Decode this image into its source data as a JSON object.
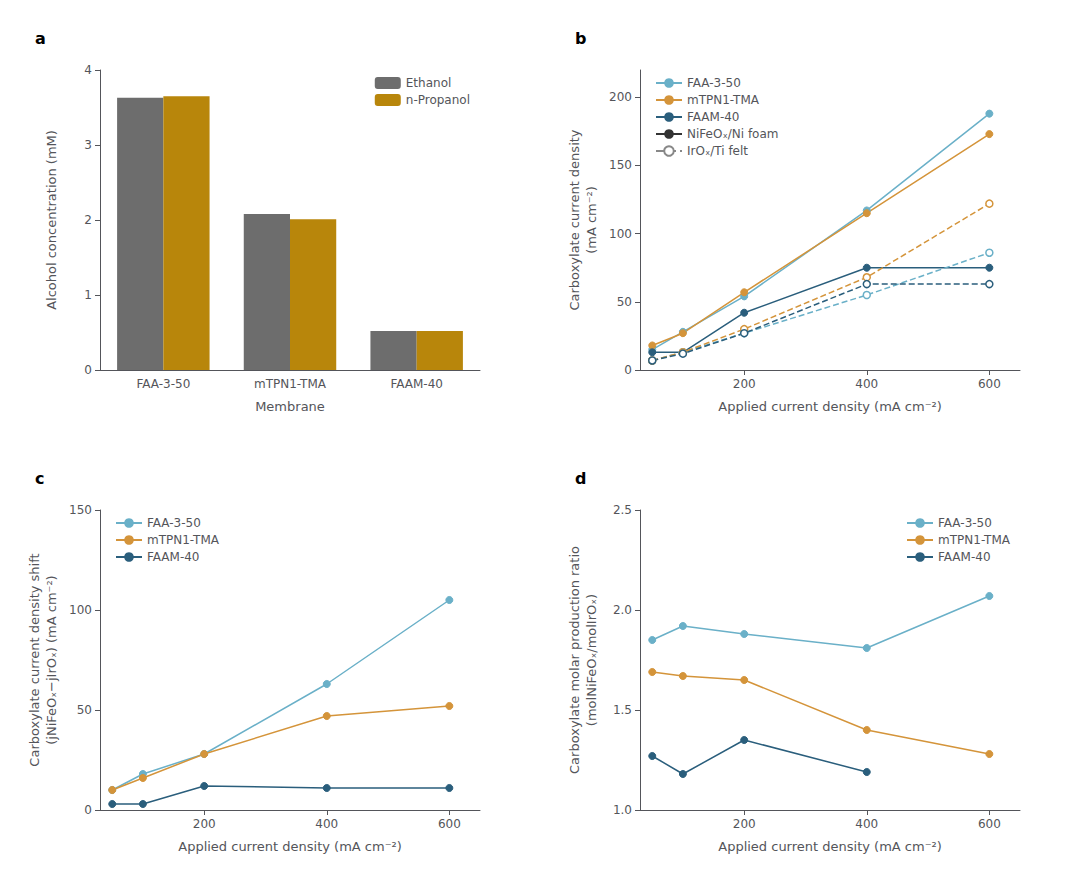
{
  "chart_data": [
    {
      "type": "bar",
      "title": "a",
      "categories": [
        "FAA-3-50",
        "mTPN1-TMA",
        "FAAM-40"
      ],
      "series": [
        {
          "name": "Ethanol",
          "color": "#6d6d6d",
          "values": [
            3.63,
            2.08,
            0.52
          ]
        },
        {
          "name": "n-Propanol",
          "color": "#b8860b",
          "values": [
            3.65,
            2.01,
            0.52
          ]
        }
      ],
      "xlabel": "Membrane",
      "ylabel": "Alcohol concentration (mM)",
      "ylim": [
        0,
        4
      ],
      "yticks": [
        0,
        1,
        2,
        3,
        4
      ],
      "legend": "upper right",
      "grid": false
    },
    {
      "type": "line",
      "title": "b",
      "x": [
        50,
        100,
        200,
        400,
        600
      ],
      "series": [
        {
          "name": "FAA-3-50",
          "color": "#6ab0c8",
          "values": [
            15,
            28,
            54,
            117,
            188
          ],
          "line_style": "solid",
          "marker": "circle"
        },
        {
          "name": "mTPN1-TMA",
          "color": "#d4943a",
          "values": [
            18,
            27,
            57,
            115,
            173
          ],
          "line_style": "solid",
          "marker": "circle"
        },
        {
          "name": "FAAM-40",
          "color": "#2a5e7c",
          "values": [
            13,
            13,
            42,
            75,
            75
          ],
          "line_style": "solid",
          "marker": "circle"
        },
        {
          "name": "FAA-3-50",
          "color": "#6ab0c8",
          "values": [
            7,
            13,
            27,
            55,
            86
          ],
          "line_style": "dashed",
          "marker": "open_circle"
        },
        {
          "name": "mTPN1-TMA",
          "color": "#d4943a",
          "values": [
            7,
            13,
            30,
            68,
            122
          ],
          "line_style": "dashed",
          "marker": "open_circle"
        },
        {
          "name": "FAAM-40",
          "color": "#2a5e7c",
          "values": [
            7,
            12,
            27,
            63,
            63
          ],
          "line_style": "dashed",
          "marker": "open_circle"
        },
        {
          "name": "NiFeOₓ/Ni foam",
          "color": "#333333",
          "values": [
            null,
            null,
            null,
            null,
            null
          ],
          "line_style": "solid",
          "marker": "circle"
        },
        {
          "name": "IrOₓ/Ti felt",
          "color": "#888888",
          "values": [
            null,
            null,
            null,
            null,
            null
          ],
          "line_style": "dashed",
          "marker": "open_circle"
        }
      ],
      "xlabel": "Applied current density (mA cm⁻²)",
      "ylabel": "Carboxylate current density\n(mA cm⁻²)",
      "xlim": [
        30,
        650
      ],
      "xticks": [
        200,
        400,
        600
      ],
      "ylim": [
        0,
        220
      ],
      "yticks": [
        0,
        50,
        100,
        150,
        200
      ],
      "legend": "upper left",
      "grid": false
    },
    {
      "type": "line",
      "title": "c",
      "x": [
        50,
        100,
        200,
        400,
        600
      ],
      "series": [
        {
          "name": "FAA-3-50",
          "color": "#6ab0c8",
          "values": [
            10,
            18,
            28,
            63,
            105
          ],
          "line_style": "solid",
          "marker": "circle"
        },
        {
          "name": "mTPN1-TMA",
          "color": "#d4943a",
          "values": [
            10,
            16,
            28,
            47,
            52
          ],
          "line_style": "solid",
          "marker": "circle"
        },
        {
          "name": "FAAM-40",
          "color": "#2a5e7c",
          "values": [
            3,
            3,
            12,
            11,
            11
          ],
          "line_style": "solid",
          "marker": "circle"
        }
      ],
      "xlabel": "Applied current density (mA cm⁻²)",
      "ylabel": "Carboxylate current density shift\n(jNiFeOₓ−jIrOₓ) (mA cm⁻²)",
      "xlim": [
        30,
        650
      ],
      "xticks": [
        200,
        400,
        600
      ],
      "ylim": [
        0,
        150
      ],
      "yticks": [
        0,
        50,
        100,
        150
      ],
      "legend": "upper left",
      "grid": false
    },
    {
      "type": "line",
      "title": "d",
      "x": [
        50,
        100,
        200,
        400,
        600
      ],
      "series": [
        {
          "name": "FAA-3-50",
          "color": "#6ab0c8",
          "values": [
            1.85,
            1.92,
            1.88,
            1.81,
            2.07
          ],
          "line_style": "solid",
          "marker": "circle"
        },
        {
          "name": "mTPN1-TMA",
          "color": "#d4943a",
          "values": [
            1.69,
            1.67,
            1.65,
            1.4,
            1.28
          ],
          "line_style": "solid",
          "marker": "circle"
        },
        {
          "name": "FAAM-40",
          "color": "#2a5e7c",
          "values": [
            1.27,
            1.18,
            1.35,
            1.19,
            null
          ],
          "line_style": "solid",
          "marker": "circle"
        }
      ],
      "xlabel": "Applied current density (mA cm⁻²)",
      "ylabel": "Carboxylate molar production ratio\n(molNiFeOₓ/molIrOₓ)",
      "xlim": [
        30,
        650
      ],
      "xticks": [
        200,
        400,
        600
      ],
      "ylim": [
        1.0,
        2.5
      ],
      "yticks": [
        {
          "value": 1.0,
          "label": "1.0"
        },
        1.5,
        {
          "value": 2.0,
          "label": "2.0"
        },
        2.5
      ],
      "legend": "upper right",
      "grid": false
    }
  ]
}
